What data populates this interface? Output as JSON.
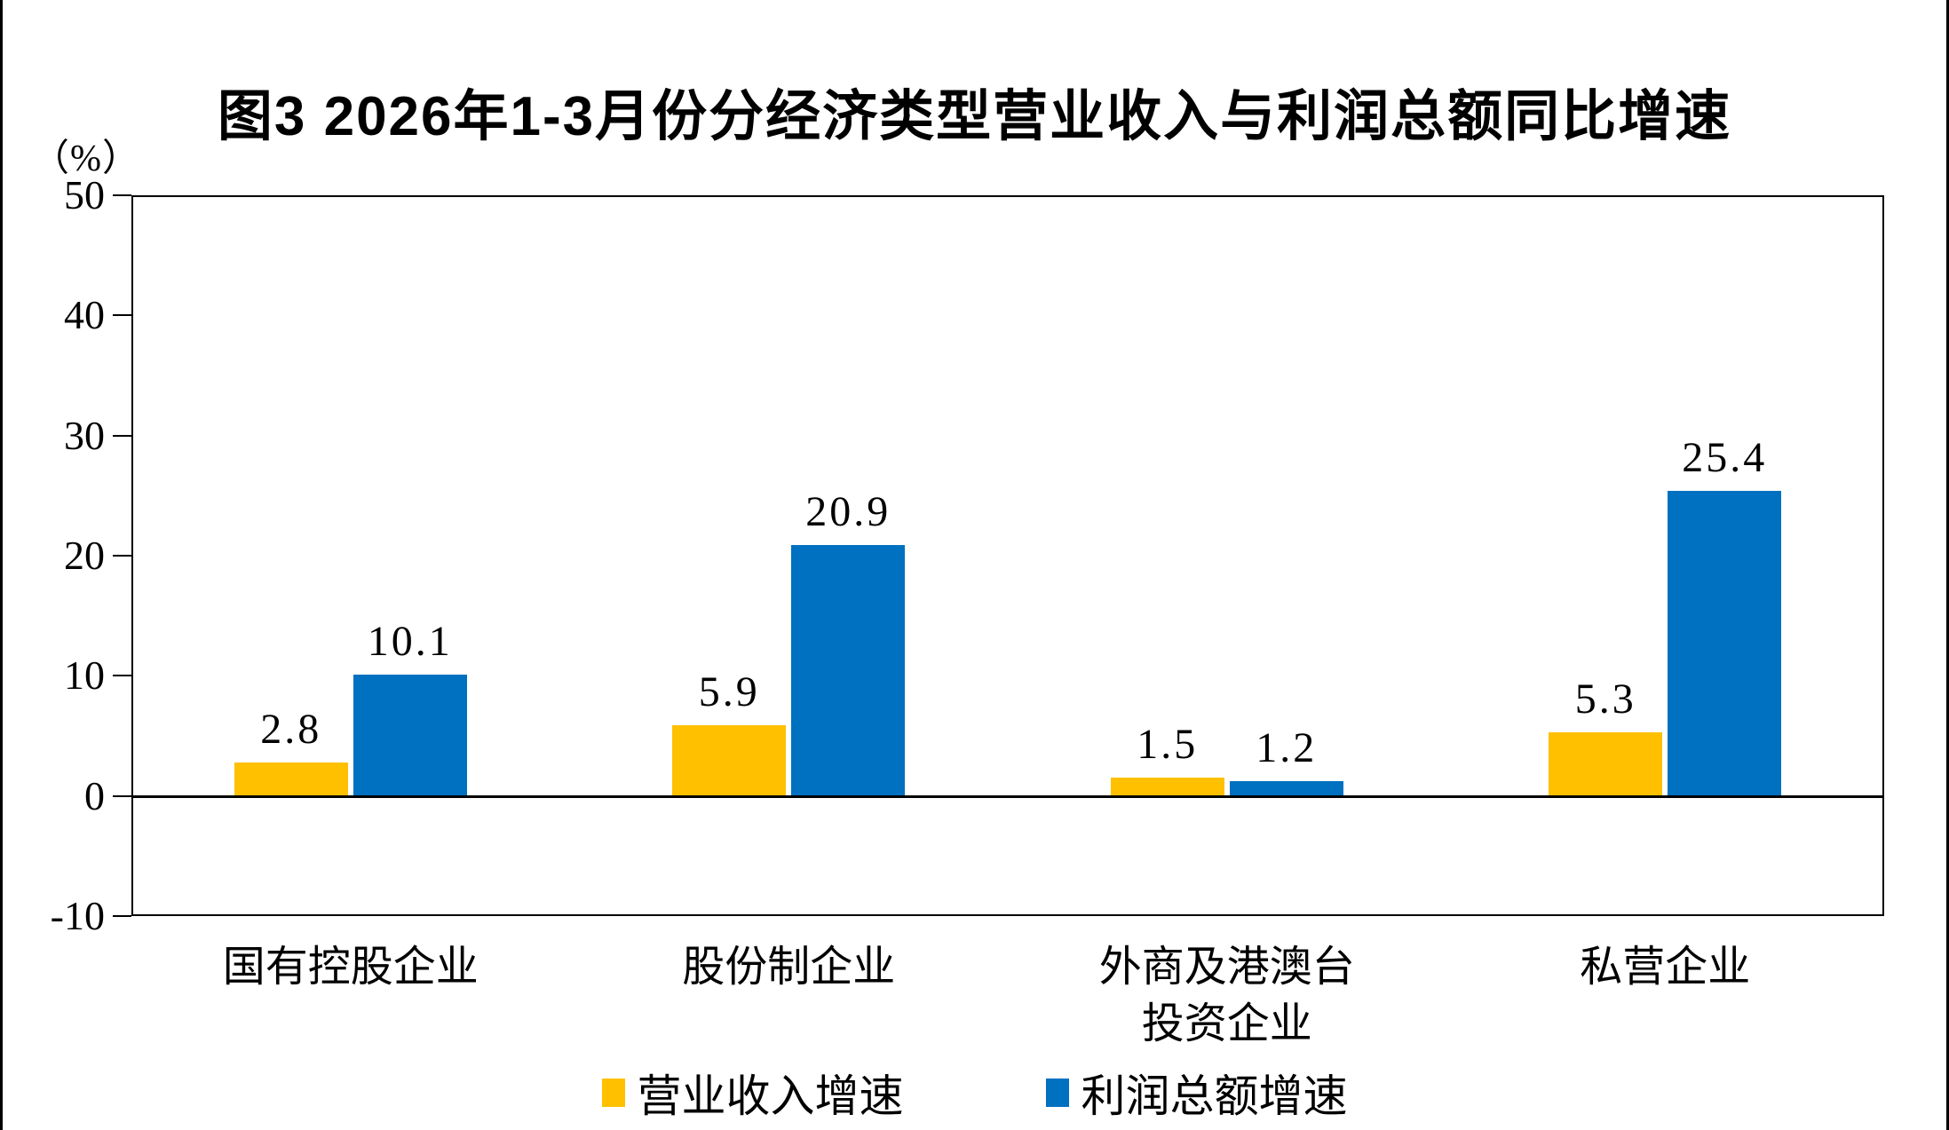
{
  "page": {
    "title": "图3 2026年1-3月份分经济类型营业收入与利润总额同比增速",
    "unit_label": "（%）"
  },
  "colors": {
    "revenue": "#FFC000",
    "profit": "#0070C0",
    "axis": "#000000"
  },
  "chart_data": {
    "type": "bar",
    "title": "图3 2026年1-3月份分经济类型营业收入与利润总额同比增速",
    "xlabel": "",
    "ylabel": "（%）",
    "unit": "%",
    "categories": [
      "国有控股企业",
      "股份制企业",
      "外商及港澳台投资企业",
      "私营企业"
    ],
    "category_lines": [
      [
        "国有控股企业"
      ],
      [
        "股份制企业"
      ],
      [
        "外商及港澳台",
        "投资企业"
      ],
      [
        "私营企业"
      ]
    ],
    "series": [
      {
        "name": "营业收入增速",
        "key": "revenue",
        "color": "#FFC000",
        "values": [
          2.8,
          5.9,
          1.5,
          5.3
        ]
      },
      {
        "name": "利润总额增速",
        "key": "profit",
        "color": "#0070C0",
        "values": [
          10.1,
          20.9,
          1.2,
          25.4
        ]
      }
    ],
    "value_labels": [
      [
        "2.8",
        "5.9",
        "1.5",
        "5.3"
      ],
      [
        "10.1",
        "20.9",
        "1.2",
        "25.4"
      ]
    ],
    "ylim": [
      -10,
      50
    ],
    "yticks": [
      50,
      40,
      30,
      20,
      10,
      0,
      -10
    ],
    "grid": false,
    "legend_position": "bottom"
  }
}
